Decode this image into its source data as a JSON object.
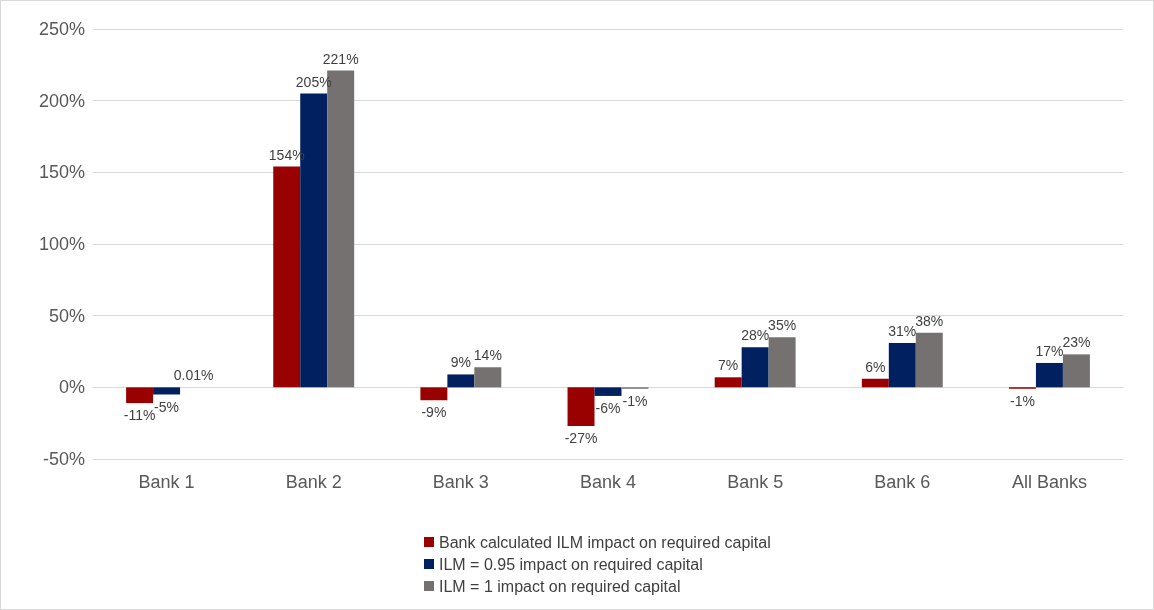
{
  "chart_data": {
    "type": "bar",
    "categories": [
      "Bank 1",
      "Bank 2",
      "Bank 3",
      "Bank 4",
      "Bank 5",
      "Bank 6",
      "All Banks"
    ],
    "series": [
      {
        "name": "Bank calculated ILM impact on required capital",
        "color": "#990000",
        "values": [
          -11,
          154,
          -9,
          -27,
          7,
          6,
          -1
        ],
        "value_labels": [
          "-11%",
          "154%",
          "-9%",
          "-27%",
          "7%",
          "6%",
          "-1%"
        ]
      },
      {
        "name": "ILM = 0.95 impact on required capital",
        "color": "#002060",
        "values": [
          -5,
          205,
          9,
          -6,
          28,
          31,
          17
        ],
        "value_labels": [
          "-5%",
          "205%",
          "9%",
          "-6%",
          "28%",
          "31%",
          "17%"
        ]
      },
      {
        "name": "ILM = 1 impact on required capital",
        "color": "#767171",
        "values": [
          0.01,
          221,
          14,
          -1,
          35,
          38,
          23
        ],
        "value_labels": [
          "0.01%",
          "221%",
          "14%",
          "-1%",
          "35%",
          "38%",
          "23%"
        ]
      }
    ],
    "ylim": [
      -50,
      250
    ],
    "yticks": [
      {
        "value": -50,
        "label": "-50%"
      },
      {
        "value": 0,
        "label": "0%"
      },
      {
        "value": 50,
        "label": "50%"
      },
      {
        "value": 100,
        "label": "100%"
      },
      {
        "value": 150,
        "label": "150%"
      },
      {
        "value": 200,
        "label": "200%"
      },
      {
        "value": 250,
        "label": "250%"
      }
    ],
    "grid": "y",
    "legend": "bottom"
  }
}
